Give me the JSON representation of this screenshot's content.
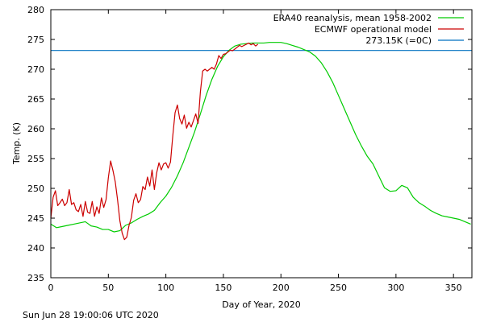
{
  "chart_data": {
    "type": "line",
    "xlabel": "Day of Year, 2020",
    "ylabel": "Temp. (K)",
    "xlim": [
      0,
      366
    ],
    "ylim": [
      235,
      280
    ],
    "xticks": [
      0,
      50,
      100,
      150,
      200,
      250,
      300,
      350
    ],
    "yticks": [
      235,
      240,
      245,
      250,
      255,
      260,
      265,
      270,
      275,
      280
    ],
    "legend_position": "top-right",
    "grid": false,
    "series": [
      {
        "name": "ERA40 reanalysis, mean 1958-2002",
        "color": "#00cc00",
        "x": [
          0,
          5,
          10,
          15,
          20,
          25,
          30,
          35,
          40,
          45,
          50,
          55,
          60,
          65,
          70,
          75,
          80,
          85,
          90,
          95,
          100,
          105,
          110,
          115,
          120,
          125,
          130,
          135,
          140,
          145,
          150,
          155,
          160,
          165,
          170,
          175,
          180,
          185,
          190,
          195,
          200,
          205,
          210,
          215,
          220,
          225,
          230,
          235,
          240,
          245,
          250,
          255,
          260,
          265,
          270,
          275,
          280,
          285,
          290,
          295,
          300,
          305,
          310,
          315,
          320,
          325,
          330,
          335,
          340,
          345,
          350,
          355,
          360,
          365
        ],
        "y": [
          244.0,
          243.4,
          243.6,
          243.8,
          244.0,
          244.2,
          244.4,
          243.7,
          243.5,
          243.1,
          243.1,
          242.7,
          242.9,
          243.8,
          244.2,
          244.8,
          245.3,
          245.7,
          246.3,
          247.6,
          248.7,
          250.2,
          252.1,
          254.3,
          256.9,
          259.5,
          262.5,
          265.6,
          268.3,
          270.5,
          272.1,
          273.2,
          273.9,
          274.2,
          274.3,
          274.4,
          274.4,
          274.4,
          274.5,
          274.5,
          274.5,
          274.3,
          274.0,
          273.7,
          273.3,
          272.9,
          272.2,
          271.1,
          269.6,
          267.8,
          265.6,
          263.4,
          261.2,
          259.0,
          257.1,
          255.4,
          254.1,
          252.1,
          250.1,
          249.5,
          249.6,
          250.5,
          250.1,
          248.5,
          247.6,
          247.0,
          246.3,
          245.8,
          245.4,
          245.2,
          245.0,
          244.8,
          244.4,
          244.0
        ]
      },
      {
        "name": "ECMWF operational model",
        "color": "#cc0000",
        "x": [
          0,
          2,
          4,
          6,
          8,
          10,
          12,
          14,
          16,
          18,
          20,
          22,
          24,
          26,
          28,
          30,
          32,
          34,
          36,
          38,
          40,
          42,
          44,
          46,
          48,
          50,
          52,
          54,
          56,
          58,
          60,
          62,
          64,
          66,
          68,
          70,
          72,
          74,
          76,
          78,
          80,
          82,
          84,
          86,
          88,
          90,
          92,
          94,
          96,
          98,
          100,
          102,
          104,
          106,
          108,
          110,
          112,
          114,
          116,
          118,
          120,
          122,
          124,
          126,
          128,
          130,
          132,
          134,
          136,
          138,
          140,
          142,
          144,
          146,
          148,
          150,
          152,
          154,
          156,
          158,
          160,
          162,
          164,
          166,
          168,
          170,
          172,
          174,
          176,
          178,
          180
        ],
        "y": [
          245.0,
          248.5,
          249.6,
          247.1,
          247.6,
          248.2,
          247.1,
          247.6,
          249.8,
          247.3,
          247.6,
          246.4,
          246.1,
          247.3,
          245.3,
          247.8,
          246.0,
          245.8,
          247.8,
          245.3,
          246.9,
          245.8,
          248.4,
          246.8,
          248.1,
          251.8,
          254.6,
          253.0,
          251.1,
          248.1,
          244.6,
          242.5,
          241.4,
          241.8,
          243.8,
          245.1,
          248.0,
          249.1,
          247.6,
          248.1,
          250.3,
          249.8,
          251.9,
          250.4,
          253.1,
          249.8,
          252.6,
          254.3,
          253.1,
          254.1,
          254.3,
          253.4,
          254.4,
          258.8,
          262.7,
          264.0,
          261.7,
          260.8,
          262.3,
          260.1,
          261.1,
          260.3,
          261.4,
          262.5,
          260.9,
          266.2,
          269.7,
          270.0,
          269.7,
          270.0,
          270.3,
          270.0,
          270.9,
          272.3,
          271.8,
          272.5,
          272.6,
          272.9,
          273.2,
          273.1,
          273.4,
          273.7,
          274.0,
          273.8,
          274.0,
          274.2,
          274.4,
          274.1,
          274.3,
          273.9,
          274.2
        ]
      },
      {
        "name": "273.15K (=0C)",
        "color": "#0070c0",
        "x": [
          0,
          366
        ],
        "y": [
          273.15,
          273.15
        ]
      }
    ]
  },
  "footer": {
    "timestamp": "Sun Jun 28 19:00:06 UTC 2020"
  }
}
